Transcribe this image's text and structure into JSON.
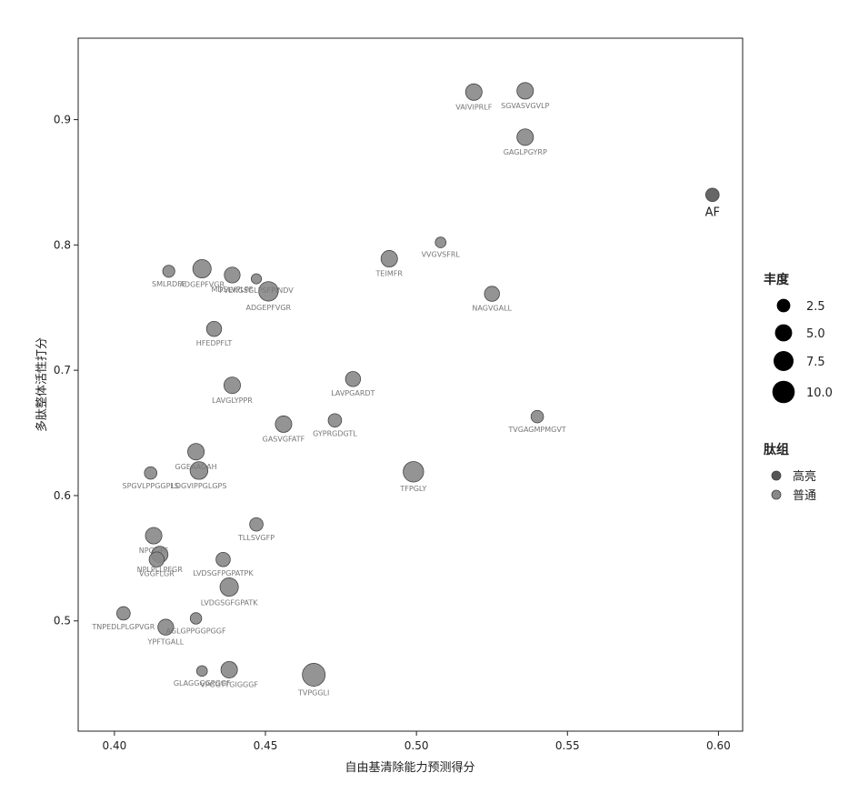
{
  "chart_data": {
    "type": "scatter",
    "xlabel": "自由基清除能力预测得分",
    "ylabel": "多肽整体活性打分",
    "xlim": [
      0.388,
      0.608
    ],
    "ylim": [
      0.412,
      0.965
    ],
    "xticks": [
      "0.40",
      "0.45",
      "0.50",
      "0.55",
      "0.60"
    ],
    "xtick_values": [
      0.4,
      0.45,
      0.5,
      0.55,
      0.6
    ],
    "yticks": [
      "0.5",
      "0.6",
      "0.7",
      "0.8",
      "0.9"
    ],
    "ytick_values": [
      0.5,
      0.6,
      0.7,
      0.8,
      0.9
    ],
    "grid": false,
    "size_legend": {
      "title": "丰度",
      "entries": [
        "2.5",
        "5.0",
        "7.5",
        "10.0"
      ],
      "values": [
        2.5,
        5.0,
        7.5,
        10.0
      ]
    },
    "group_legend": {
      "title": "肽组",
      "entries": [
        "高亮",
        "普通"
      ]
    },
    "colors": {
      "highlight": "#555555",
      "normal": "#888888",
      "label": "#777777",
      "axis": "#222222"
    },
    "points": [
      {
        "x": 0.598,
        "y": 0.84,
        "size": 2.5,
        "group": "高亮",
        "label": "AF",
        "label_big": true
      },
      {
        "x": 0.519,
        "y": 0.922,
        "size": 4.5,
        "group": "普通",
        "label": "VAIVIPRLF"
      },
      {
        "x": 0.536,
        "y": 0.923,
        "size": 4.5,
        "group": "普通",
        "label": "SGVASVGVLP"
      },
      {
        "x": 0.536,
        "y": 0.886,
        "size": 4.5,
        "group": "普通",
        "label": "GAGLPGYRP"
      },
      {
        "x": 0.508,
        "y": 0.802,
        "size": 1.2,
        "group": "普通",
        "label": "VVGVSFRL"
      },
      {
        "x": 0.491,
        "y": 0.789,
        "size": 4.5,
        "group": "普通",
        "label": "TEIMFR"
      },
      {
        "x": 0.525,
        "y": 0.761,
        "size": 3.5,
        "group": "普通",
        "label": "NAGVGALL"
      },
      {
        "x": 0.418,
        "y": 0.779,
        "size": 1.8,
        "group": "普通",
        "label": "SMLRDFF"
      },
      {
        "x": 0.429,
        "y": 0.781,
        "size": 6.0,
        "group": "普通",
        "label": "ADGEPFVGR"
      },
      {
        "x": 0.439,
        "y": 0.776,
        "size": 4.0,
        "group": "普通",
        "label": "MDSLVPLPF"
      },
      {
        "x": 0.447,
        "y": 0.773,
        "size": 1.0,
        "group": "普通",
        "label": "FVEKGSGLPSFPINDV"
      },
      {
        "x": 0.451,
        "y": 0.763,
        "size": 7.0,
        "group": "普通",
        "label": "ADGEPFVGR"
      },
      {
        "x": 0.433,
        "y": 0.733,
        "size": 3.5,
        "group": "普通",
        "label": "HFEDPFLT"
      },
      {
        "x": 0.439,
        "y": 0.688,
        "size": 4.5,
        "group": "普通",
        "label": "LAVGLYPPR"
      },
      {
        "x": 0.479,
        "y": 0.693,
        "size": 3.5,
        "group": "普通",
        "label": "LAVPGARDT"
      },
      {
        "x": 0.456,
        "y": 0.657,
        "size": 4.5,
        "group": "普通",
        "label": "GASVGFATF"
      },
      {
        "x": 0.473,
        "y": 0.66,
        "size": 2.5,
        "group": "普通",
        "label": "GYPRGDGTL"
      },
      {
        "x": 0.54,
        "y": 0.663,
        "size": 2.0,
        "group": "普通",
        "label": "TVGAGMPMGVT"
      },
      {
        "x": 0.427,
        "y": 0.635,
        "size": 4.5,
        "group": "普通",
        "label": "GGEAAGAH"
      },
      {
        "x": 0.499,
        "y": 0.619,
        "size": 8.0,
        "group": "普通",
        "label": "TFPGLY"
      },
      {
        "x": 0.412,
        "y": 0.618,
        "size": 2.0,
        "group": "普通",
        "label": "SPGVLPPGGPLS"
      },
      {
        "x": 0.428,
        "y": 0.62,
        "size": 5.5,
        "group": "普通",
        "label": "LDGVIPPGLGPS"
      },
      {
        "x": 0.447,
        "y": 0.577,
        "size": 2.5,
        "group": "普通",
        "label": "TLLSVGFP"
      },
      {
        "x": 0.413,
        "y": 0.568,
        "size": 4.5,
        "group": "普通",
        "label": "NPGGPF"
      },
      {
        "x": 0.415,
        "y": 0.553,
        "size": 4.5,
        "group": "普通",
        "label": "NPLPLLPFGR"
      },
      {
        "x": 0.414,
        "y": 0.549,
        "size": 3.5,
        "group": "普通",
        "label": "VGGFLGR"
      },
      {
        "x": 0.436,
        "y": 0.549,
        "size": 3.0,
        "group": "普通",
        "label": "LVDSGFPGPATPK"
      },
      {
        "x": 0.438,
        "y": 0.527,
        "size": 6.0,
        "group": "普通",
        "label": "LVDGSGFGPATK"
      },
      {
        "x": 0.403,
        "y": 0.506,
        "size": 2.5,
        "group": "普通",
        "label": "TNPEDLPLGPVGR"
      },
      {
        "x": 0.427,
        "y": 0.502,
        "size": 1.5,
        "group": "普通",
        "label": "AGLGPPGGPGGF"
      },
      {
        "x": 0.417,
        "y": 0.495,
        "size": 4.0,
        "group": "普通",
        "label": "YPFTGALL"
      },
      {
        "x": 0.438,
        "y": 0.461,
        "size": 4.5,
        "group": "普通",
        "label": "VPGGTTGIGGGF"
      },
      {
        "x": 0.429,
        "y": 0.46,
        "size": 1.2,
        "group": "普通",
        "label": "GLAGGGGPGGF"
      },
      {
        "x": 0.466,
        "y": 0.457,
        "size": 10.5,
        "group": "普通",
        "label": "TVPGGLI"
      }
    ]
  }
}
